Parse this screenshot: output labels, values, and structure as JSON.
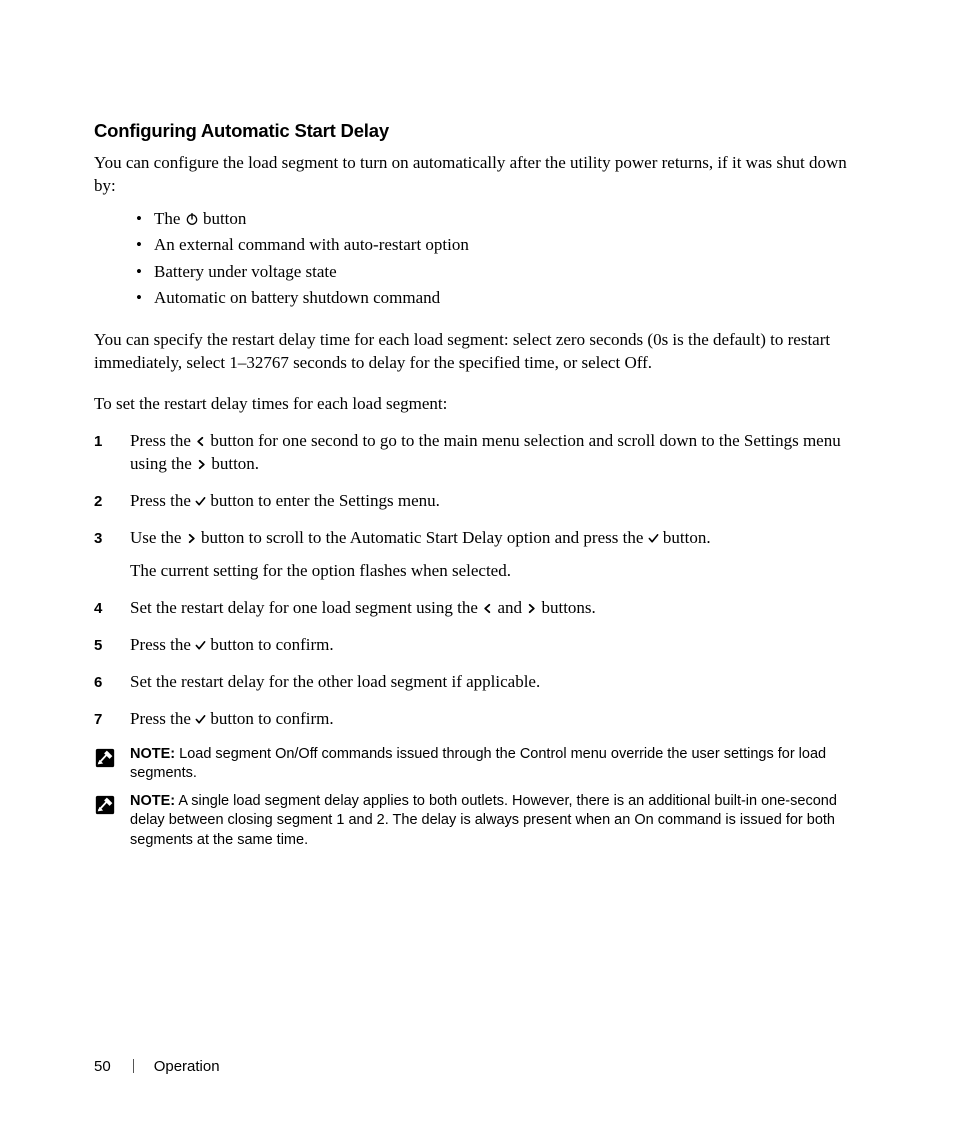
{
  "page": {
    "heading": "Configuring Automatic Start Delay",
    "intro": "You can configure the load segment to turn on automatically after the utility power returns, if it was shut down by:",
    "bullets": [
      {
        "pre": "The ",
        "icon": "power",
        "post": " button"
      },
      {
        "text": "An external command with auto-restart option"
      },
      {
        "text": "Battery under voltage state"
      },
      {
        "text": "Automatic on battery shutdown command"
      }
    ],
    "para2": "You can specify the restart delay time for each load segment: select zero seconds (0s is the default) to restart immediately, select 1–32767 seconds to delay for the specified time, or select Off.",
    "para3": "To set the restart delay times for each load segment:",
    "steps": [
      {
        "runs": [
          {
            "t": "Press the "
          },
          {
            "icon": "left"
          },
          {
            "t": " button for one second to go to the main menu selection and scroll down to the Settings menu using the "
          },
          {
            "icon": "right"
          },
          {
            "t": " button."
          }
        ]
      },
      {
        "runs": [
          {
            "t": "Press the "
          },
          {
            "icon": "check"
          },
          {
            "t": " button to enter the Settings menu."
          }
        ]
      },
      {
        "runs": [
          {
            "t": "Use the "
          },
          {
            "icon": "right"
          },
          {
            "t": " button to scroll to the Automatic Start Delay option and press the "
          },
          {
            "icon": "check"
          },
          {
            "t": " button."
          }
        ],
        "sub": "The current setting for the option flashes when selected."
      },
      {
        "runs": [
          {
            "t": "Set the restart delay for one load segment using the "
          },
          {
            "icon": "left"
          },
          {
            "t": " and "
          },
          {
            "icon": "right"
          },
          {
            "t": " buttons."
          }
        ]
      },
      {
        "runs": [
          {
            "t": "Press the "
          },
          {
            "icon": "check"
          },
          {
            "t": " button to confirm."
          }
        ]
      },
      {
        "runs": [
          {
            "t": "Set the restart delay for the other load segment if applicable."
          }
        ]
      },
      {
        "runs": [
          {
            "t": "Press the "
          },
          {
            "icon": "check"
          },
          {
            "t": " button to confirm."
          }
        ]
      }
    ],
    "notes": [
      {
        "label": "NOTE:",
        "text": " Load segment On/Off commands issued through the Control menu override the user settings for load segments."
      },
      {
        "label": "NOTE:",
        "text": " A single load segment delay applies to both outlets. However, there is an additional built-in one-second delay between closing segment 1 and 2. The delay is always present when an On command is issued for both segments at the same time."
      }
    ],
    "footer": {
      "page_number": "50",
      "section": "Operation"
    },
    "colors": {
      "text": "#000000",
      "background": "#ffffff",
      "footer_divider": "#555555"
    },
    "typography": {
      "heading_font": "Helvetica",
      "heading_size_pt": 14,
      "heading_weight": 700,
      "body_font": "Georgia",
      "body_size_pt": 12.5,
      "note_font": "Helvetica",
      "note_size_pt": 11
    }
  }
}
